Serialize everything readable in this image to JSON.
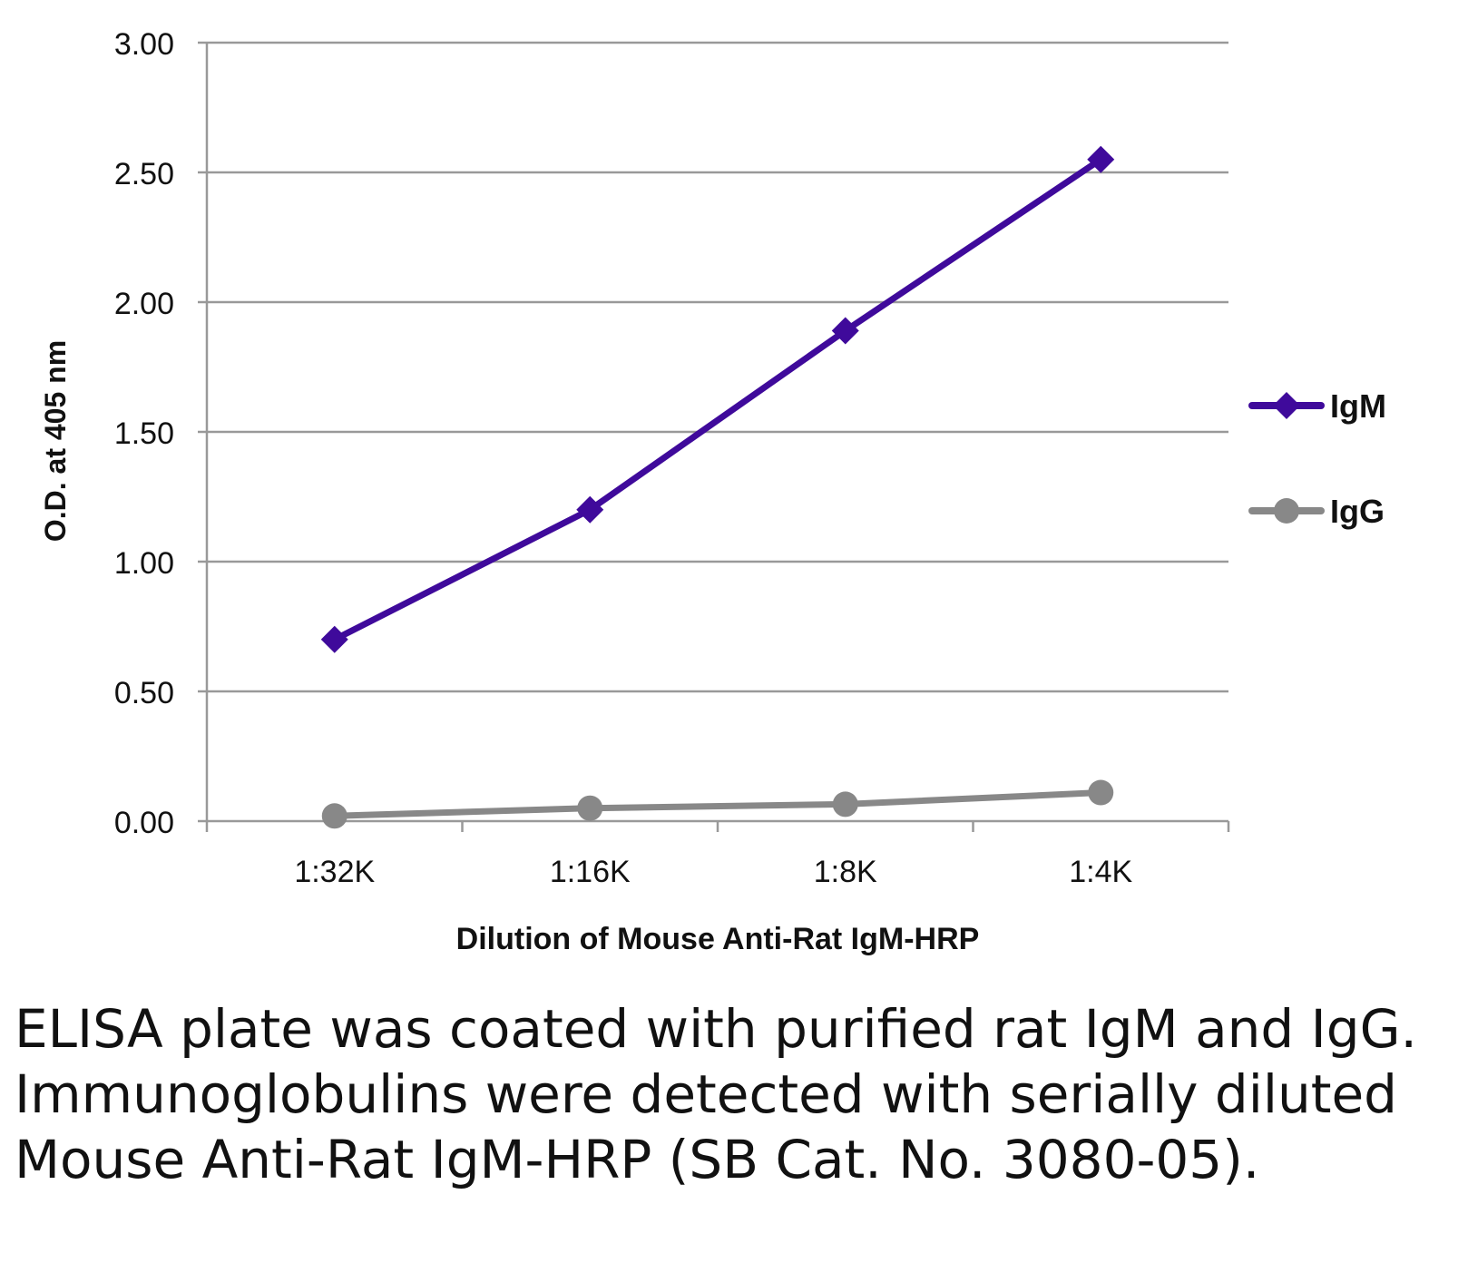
{
  "chart_data": {
    "type": "line",
    "title": "",
    "xlabel": "Dilution of Mouse Anti-Rat IgM-HRP",
    "ylabel": "O.D. at 405 nm",
    "categories": [
      "1:32K",
      "1:16K",
      "1:8K",
      "1:4K"
    ],
    "ylim": [
      0,
      3
    ],
    "yticks": [
      "0.00",
      "0.50",
      "1.00",
      "1.50",
      "2.00",
      "2.50",
      "3.00"
    ],
    "grid": true,
    "legend": "right",
    "series": [
      {
        "name": "IgM",
        "values": [
          0.7,
          1.2,
          1.89,
          2.55
        ],
        "color": "#3f0a9b",
        "marker": "diamond"
      },
      {
        "name": "IgG",
        "values": [
          0.02,
          0.05,
          0.065,
          0.11
        ],
        "color": "#888888",
        "marker": "circle"
      }
    ]
  },
  "caption": "ELISA plate was coated with purified rat IgM and IgG.  Immunoglobulins were detected with serially diluted Mouse Anti-Rat IgM-HRP (SB Cat. No. 3080-05)."
}
